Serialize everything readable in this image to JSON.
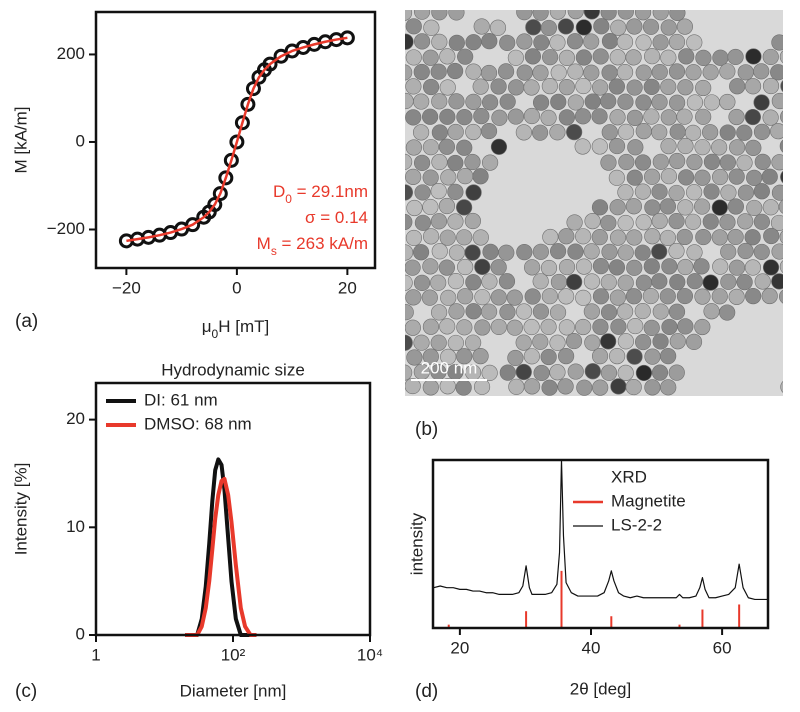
{
  "chart_data": [
    {
      "type": "line",
      "panel_label": "(a)",
      "x_label": [
        "μ",
        "0",
        "H [mT]"
      ],
      "y_label": "M [kA/m]",
      "xlim": [
        -25.5,
        25
      ],
      "ylim": [
        -288,
        297
      ],
      "xticks": [
        {
          "value": -20,
          "label": "−20"
        },
        0,
        20
      ],
      "yticks": [
        {
          "value": -200,
          "label": "−200"
        },
        0,
        200
      ],
      "x": [
        -20,
        -18,
        -16,
        -14,
        -12,
        -10,
        -8,
        -6,
        -5,
        -4,
        -3,
        -2,
        -1,
        0,
        1,
        2,
        3,
        4,
        5,
        6,
        8,
        10,
        12,
        14,
        16,
        18,
        20
      ],
      "series": [
        {
          "mode": "markers",
          "color": "#111111",
          "values": [
            -226,
            -222,
            -218,
            -213,
            -207,
            -199,
            -189,
            -172,
            -160,
            -143,
            -118,
            -82,
            -42,
            0,
            44,
            86,
            122,
            148,
            165,
            178,
            196,
            208,
            216,
            223,
            229,
            234,
            238
          ]
        },
        {
          "mode": "line",
          "color": "#e8392b",
          "values": [
            -226,
            -222,
            -218,
            -213,
            -207,
            -199,
            -189,
            -172,
            -160,
            -143,
            -118,
            -82,
            -42,
            0,
            44,
            86,
            122,
            148,
            165,
            178,
            196,
            208,
            216,
            223,
            229,
            234,
            238
          ]
        }
      ],
      "annotations": [
        [
          "D",
          "0",
          " = 29.1nm"
        ],
        [
          "σ = 0.14"
        ],
        [
          "M",
          "s",
          " = 263 kA/m"
        ]
      ],
      "annotation_color": "#e8392b"
    },
    {
      "type": "line",
      "panel_label": "(c)",
      "title": "Hydrodynamic size",
      "x_label": "Diameter [nm]",
      "y_label": "Intensity [%]",
      "xscale": "log",
      "xlim": [
        1,
        10000
      ],
      "ylim": [
        0,
        23.4
      ],
      "xticks": [
        1,
        {
          "value": 100,
          "label": "10²"
        },
        {
          "value": 10000,
          "label": "10⁴"
        }
      ],
      "yticks": [
        0,
        10,
        20
      ],
      "x": [
        20,
        30,
        35,
        40,
        45,
        50,
        55,
        61,
        68,
        75,
        85,
        95,
        110,
        130,
        150,
        180,
        220
      ],
      "legend": "upper left",
      "series": [
        {
          "name": "DI: 61 nm",
          "mode": "line",
          "color": "#111111",
          "values": [
            0,
            0,
            1.5,
            4.5,
            8.5,
            12.5,
            15.3,
            16.3,
            15.8,
            13.5,
            9,
            5,
            1.5,
            0,
            0,
            0,
            0
          ]
        },
        {
          "name": "DMSO: 68 nm",
          "mode": "line",
          "color": "#e8392b",
          "values": [
            0,
            0,
            0.8,
            2.5,
            5,
            8,
            10.8,
            13,
            14.3,
            14.5,
            13,
            10.5,
            6.5,
            2.5,
            0.8,
            0,
            0
          ]
        }
      ]
    },
    {
      "type": "line",
      "panel_label": "(d)",
      "x_label": "2θ [deg]",
      "y_label": "intensity",
      "xlim": [
        15.9,
        67
      ],
      "ylim": [
        0,
        100
      ],
      "xticks": [
        20,
        40,
        60
      ],
      "legend": "upper right",
      "legend_title": "XRD",
      "series": [
        {
          "name": "Magnetite",
          "mode": "sticks",
          "color": "#e8392b",
          "x": [
            18.3,
            30.1,
            35.5,
            43.1,
            53.5,
            57,
            62.6
          ],
          "values": [
            2,
            10,
            34,
            7,
            2,
            11,
            14
          ]
        },
        {
          "name": "LS-2-2",
          "mode": "line",
          "color": "#111111",
          "x": [
            16,
            17,
            18,
            19,
            20,
            21,
            22,
            23,
            24,
            25,
            26,
            27,
            28,
            29,
            29.6,
            30.1,
            30.6,
            31,
            32,
            33,
            34,
            34.8,
            35.2,
            35.5,
            35.8,
            36.2,
            37,
            38,
            39,
            40,
            41,
            42,
            42.7,
            43.1,
            43.5,
            44.2,
            45,
            46,
            47,
            48,
            49,
            50,
            51,
            52,
            53,
            53.5,
            54,
            55,
            56,
            56.6,
            57,
            57.4,
            58,
            59,
            60,
            61,
            62,
            62.6,
            63.2,
            64,
            65,
            66,
            67
          ],
          "values": [
            24,
            25,
            24,
            24,
            23,
            23,
            22,
            22,
            21,
            21,
            20,
            20,
            20,
            21,
            25,
            37,
            24,
            20,
            20,
            20,
            21,
            26,
            45,
            100,
            55,
            27,
            21,
            19,
            19,
            19,
            19,
            21,
            28,
            34,
            28,
            21,
            19,
            18,
            19,
            18,
            18,
            18,
            18,
            18,
            18,
            20,
            18,
            18,
            19,
            24,
            30,
            23,
            18,
            18,
            19,
            20,
            24,
            38,
            24,
            18,
            17,
            17,
            17
          ]
        }
      ]
    }
  ],
  "image": {
    "scale_bar": "200 nm",
    "panel_label": "(b)"
  }
}
